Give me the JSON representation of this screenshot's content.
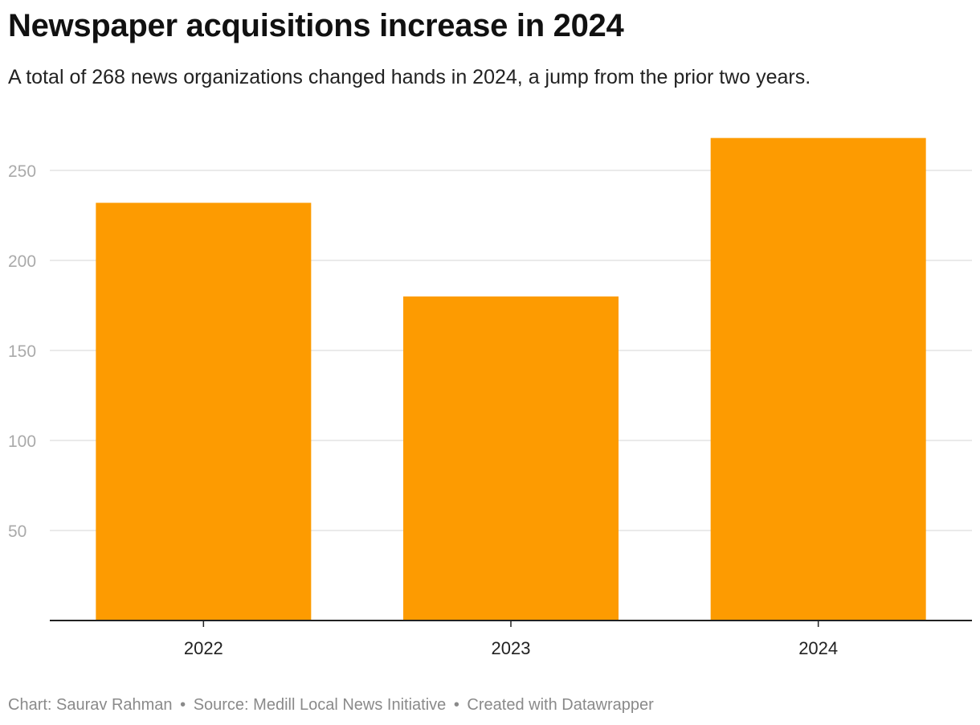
{
  "header": {
    "title": "Newspaper acquisitions increase in 2024",
    "subtitle": "A total of 268 news organizations changed hands in 2024, a jump from the prior two years."
  },
  "footer": {
    "chart_credit": "Chart: Saurav Rahman",
    "source": "Source: Medill Local News Initiative",
    "created_with": "Created with Datawrapper",
    "separator": "•"
  },
  "colors": {
    "bar": "#fd9b01",
    "grid": "#e3e3e3",
    "axis": "#222222",
    "tick_label": "#aaaaaa",
    "category_label": "#222222"
  },
  "chart_data": {
    "type": "bar",
    "categories": [
      "2022",
      "2023",
      "2024"
    ],
    "values": [
      232,
      180,
      268
    ],
    "ylim": [
      0,
      280
    ],
    "yticks": [
      50,
      100,
      150,
      200,
      250
    ],
    "grid": true,
    "xlabel": "",
    "ylabel": ""
  }
}
